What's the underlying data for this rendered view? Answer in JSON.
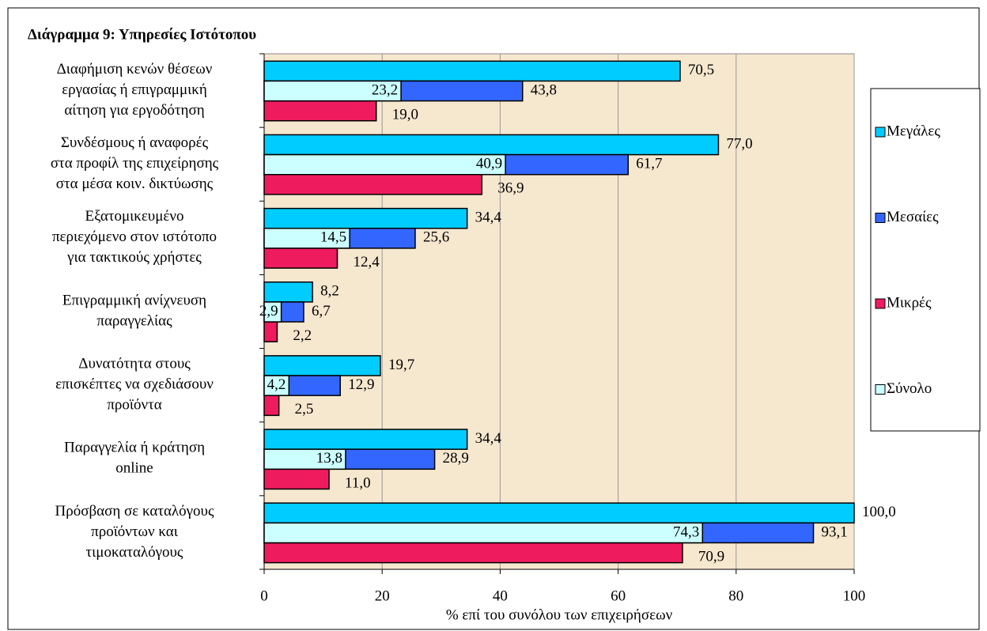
{
  "chart_data": {
    "type": "bar",
    "orientation": "horizontal",
    "title": "Διάγραμμα 9: Υπηρεσίες Ιστότοπου",
    "x_label": "% επί του συνόλου των επιχειρήσεων",
    "categories": [
      [
        "Διαφήμιση κενών θέσεων",
        "εργασίας ή επιγραμμική",
        "αίτηση για εργοδότηση"
      ],
      [
        "Συνδέσμους ή αναφορές",
        "στα προφίλ της επιχείρησης",
        "στα μέσα κοιν. δικτύωσης"
      ],
      [
        "Εξατομικευμένο",
        "περιεχόμενο στον ιστότοπο",
        "για τακτικούς χρήστες"
      ],
      [
        "Επιγραμμική ανίχνευση",
        "παραγγελίας"
      ],
      [
        "Δυνατότητα στους",
        "επισκέπτες να σχεδιάσουν",
        "προϊόντα"
      ],
      [
        "Παραγγελία ή κράτηση",
        "online"
      ],
      [
        "Πρόσβαση σε καταλόγους",
        "προϊόντων και",
        "τιμοκαταλόγους"
      ]
    ],
    "series": [
      {
        "name": "Μεγάλες",
        "color": "#00ccff",
        "values": [
          70.5,
          77.0,
          34.4,
          8.2,
          19.7,
          34.4,
          100.0
        ],
        "value_labels": [
          "70,5",
          "77,0",
          "34,4",
          "8,2",
          "19,7",
          "34,4",
          "100,0"
        ]
      },
      {
        "name": "Μεσαίες",
        "color": "#3366ff",
        "values": [
          43.8,
          61.7,
          25.6,
          6.7,
          12.9,
          28.9,
          93.1
        ],
        "value_labels": [
          "43,8",
          "61,7",
          "25,6",
          "6,7",
          "12,9",
          "28,9",
          "93,1"
        ]
      },
      {
        "name": "Μικρές",
        "color": "#ee1c5e",
        "values": [
          19.0,
          36.9,
          12.4,
          2.2,
          2.5,
          11.0,
          70.9
        ],
        "value_labels": [
          "19,0",
          "36,9",
          "12,4",
          "2,2",
          "2,5",
          "11,0",
          "70,9"
        ]
      },
      {
        "name": "Σύνολο",
        "color": "#ccffff",
        "values": [
          23.2,
          40.9,
          14.5,
          2.9,
          4.2,
          13.8,
          74.3
        ],
        "value_labels": [
          "23,2",
          "40,9",
          "14,5",
          "2,9",
          "4,2",
          "13,8",
          "74,3"
        ]
      }
    ],
    "xlim": [
      0,
      100
    ],
    "xticks": [
      0,
      20,
      40,
      60,
      80,
      100
    ],
    "grid": true,
    "legend": "right"
  }
}
